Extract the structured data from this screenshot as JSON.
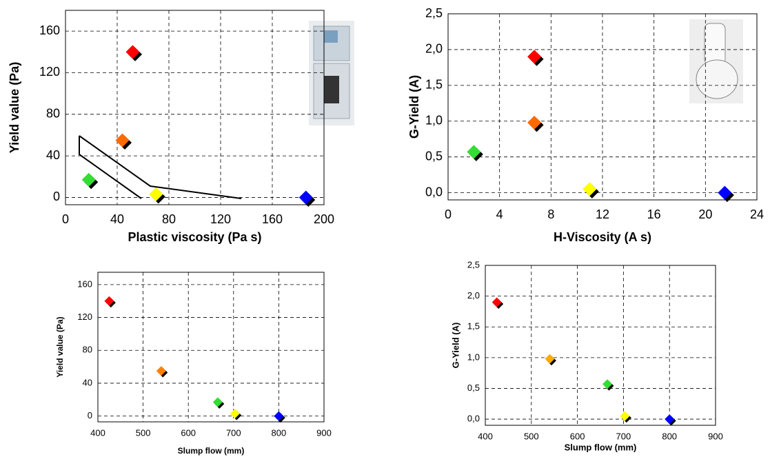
{
  "chart_data": [
    {
      "type": "scatter",
      "x_label": "Plastic viscosity (Pa s)",
      "y_label": "Yield value (Pa)",
      "x": [
        52,
        44,
        18,
        70,
        186
      ],
      "values": [
        140,
        55,
        17,
        3,
        0
      ],
      "colors": [
        "#ff0000",
        "#ff6a00",
        "#33dd33",
        "#ffff00",
        "#0000ff"
      ],
      "xlim": [
        0,
        200
      ],
      "xticks": [
        0,
        40,
        80,
        120,
        160,
        200
      ],
      "ylim": [
        -7,
        180
      ],
      "yticks": [
        0,
        40,
        80,
        120,
        160
      ],
      "grid": true
    },
    {
      "type": "scatter",
      "x_label": "H-Viscosity (A s)",
      "y_label": "G-Yield (A)",
      "x": [
        6.7,
        6.7,
        2,
        11,
        21.5
      ],
      "values": [
        1.9,
        0.98,
        0.57,
        0.05,
        0
      ],
      "colors": [
        "#ff0000",
        "#ff6a00",
        "#33dd33",
        "#ffff00",
        "#0000ff"
      ],
      "xlim": [
        0,
        24
      ],
      "xticks": [
        0,
        4,
        8,
        12,
        16,
        20,
        24
      ],
      "ylim": [
        -0.1,
        2.5
      ],
      "yticks": [
        {
          "value": 0,
          "label": "0,0"
        },
        {
          "value": 0.5,
          "label": "0,5"
        },
        {
          "value": 1,
          "label": "1,0"
        },
        {
          "value": 1.5,
          "label": "1,5"
        },
        {
          "value": 2,
          "label": "2,0"
        },
        {
          "value": 2.5,
          "label": "2,5"
        }
      ],
      "grid": true
    },
    {
      "type": "scatter",
      "x_label": "Slump flow (mm)",
      "y_label": "Yield value (Pa)",
      "x": [
        425,
        540,
        665,
        703,
        800
      ],
      "values": [
        140,
        55,
        17,
        3,
        0
      ],
      "colors": [
        "#ff0000",
        "#ff8000",
        "#33dd33",
        "#ffff00",
        "#0000ff"
      ],
      "xlim": [
        400,
        900
      ],
      "xticks": [
        400,
        500,
        600,
        700,
        800,
        900
      ],
      "ylim": [
        -7,
        175
      ],
      "yticks": [
        0,
        40,
        80,
        120,
        160
      ],
      "grid": true
    },
    {
      "type": "scatter",
      "x_label": "Slump flow (mm)",
      "y_label": "G-Yield (A)",
      "x": [
        425,
        540,
        665,
        703,
        800
      ],
      "values": [
        1.9,
        0.98,
        0.57,
        0.05,
        0
      ],
      "colors": [
        "#ff0000",
        "#ffaa00",
        "#33dd33",
        "#ffff00",
        "#0000ff"
      ],
      "xlim": [
        400,
        900
      ],
      "xticks": [
        400,
        500,
        600,
        700,
        800,
        900
      ],
      "ylim": [
        -0.1,
        2.5
      ],
      "yticks": [
        {
          "value": 0,
          "label": "0,0"
        },
        {
          "value": 0.5,
          "label": "0,5"
        },
        {
          "value": 1,
          "label": "1,0"
        },
        {
          "value": 1.5,
          "label": "1,5"
        },
        {
          "value": 2,
          "label": "2,0"
        },
        {
          "value": 2.5,
          "label": "2,5"
        }
      ],
      "grid": true
    }
  ]
}
